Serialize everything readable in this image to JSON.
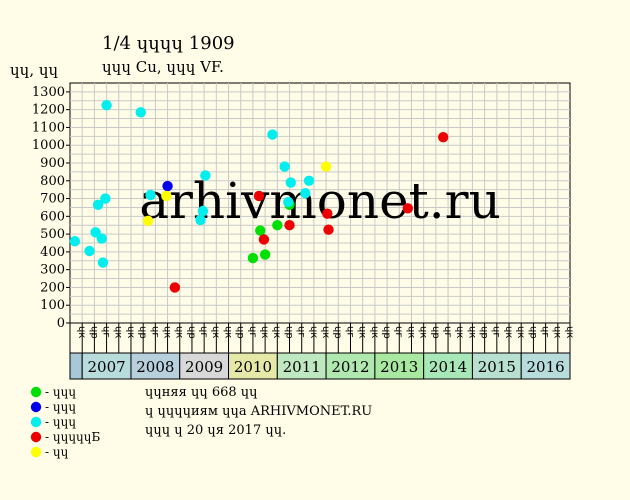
{
  "chart_data": {
    "type": "scatter",
    "title": "1/4 ɥɥɥɥ 1909",
    "subtitle": "ɥɥɥ Cu, ɥɥɥ VF.",
    "ylabel": "ɥɥ, ɥɥ",
    "ylim": [
      0,
      1350
    ],
    "y_ticks": [
      0,
      100,
      200,
      300,
      400,
      500,
      600,
      700,
      800,
      900,
      1000,
      1100,
      1200,
      1300
    ],
    "quarter_labels": [
      "ɥк",
      "ɥр",
      "ɥг",
      "ɥк"
    ],
    "years": [
      "2007",
      "2008",
      "2009",
      "2010",
      "2011",
      "2012",
      "2013",
      "2014",
      "2015",
      "2016"
    ],
    "year_colors": [
      "#b8dcdc",
      "#b8d0dc",
      "#d8d8d8",
      "#e6e8a8",
      "#c0e8c0",
      "#b0e8b0",
      "#a8e8a0",
      "#a8e8b8",
      "#b8e0d0",
      "#b8dcdc"
    ],
    "watermark": "arhivmonet.ru",
    "series": [
      {
        "name": "- ɥɥɥ",
        "color": "#00e000",
        "points": [
          [
            15.0,
            365
          ],
          [
            15.6,
            520
          ],
          [
            16.0,
            385
          ],
          [
            17.0,
            550
          ],
          [
            18.0,
            665
          ]
        ]
      },
      {
        "name": "- ɥɥɥ",
        "color": "#0000ee",
        "points": [
          [
            8.0,
            770
          ]
        ]
      },
      {
        "name": "- ɥɥɥ",
        "color": "#00eeee",
        "points": [
          [
            0.4,
            460
          ],
          [
            1.6,
            405
          ],
          [
            2.1,
            510
          ],
          [
            2.3,
            665
          ],
          [
            2.6,
            475
          ],
          [
            2.7,
            340
          ],
          [
            2.9,
            700
          ],
          [
            3.0,
            1225
          ],
          [
            5.8,
            1185
          ],
          [
            6.6,
            720
          ],
          [
            10.7,
            580
          ],
          [
            10.9,
            630
          ],
          [
            11.1,
            830
          ],
          [
            16.6,
            1060
          ],
          [
            17.6,
            880
          ],
          [
            17.9,
            680
          ],
          [
            18.1,
            790
          ],
          [
            19.3,
            730
          ],
          [
            19.6,
            800
          ]
        ]
      },
      {
        "name": "- ɥɥɥɥɥБ",
        "color": "#ee0000",
        "points": [
          [
            8.6,
            200
          ],
          [
            15.5,
            715
          ],
          [
            15.9,
            470
          ],
          [
            18.0,
            550
          ],
          [
            21.1,
            615
          ],
          [
            21.2,
            525
          ],
          [
            27.7,
            645
          ],
          [
            30.6,
            1045
          ]
        ]
      },
      {
        "name": "- ɥɥ",
        "color": "#ffff00",
        "points": [
          [
            6.4,
            575
          ],
          [
            7.9,
            715
          ],
          [
            21.0,
            880
          ]
        ]
      }
    ]
  },
  "notes": [
    "ɥɥняя ɥɥ 668 ɥɥ",
    "ɥ ɥɥɥɥиям ɥɥа ARHIVMONET.RU",
    "ɥɥɥ ɥ 20 ɥя 2017 ɥɥ."
  ]
}
